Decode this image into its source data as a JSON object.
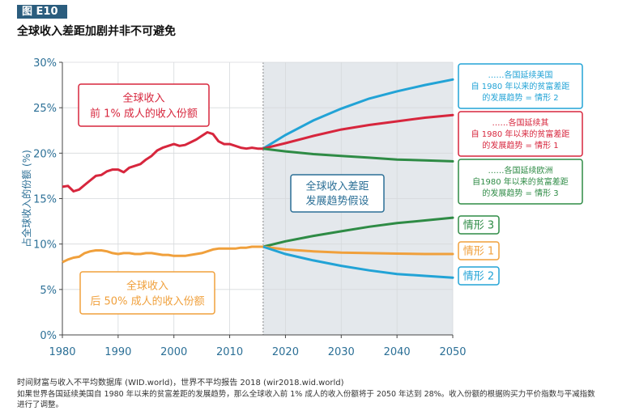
{
  "figure": {
    "label": "图 E10",
    "title": "全球收入差距加剧并非不可避免",
    "source": "时间财富与收入不平均数据库 (WID.world)，世界不平均报告 2018 (wir2018.wid.world)",
    "note": "如果世界各国延续美国自 1980 年以来的贫富差距的发展趋势，那么全球收入前 1% 成人的收入份额将于 2050 年达到 28%。收入份额的根据购买力平价指数与平减指数进行了调整。"
  },
  "colors": {
    "red": "#d7263d",
    "orange": "#f0a03c",
    "green": "#2e8b45",
    "blue": "#22a3d6",
    "axis": "#2b6f96",
    "shade": "#e4e8ec"
  },
  "chart_data": {
    "type": "line",
    "xlim": [
      1980,
      2050
    ],
    "ylim": [
      0,
      30
    ],
    "xticks": [
      1980,
      1990,
      2000,
      2010,
      2020,
      2030,
      2040,
      2050
    ],
    "yticks": [
      0,
      5,
      10,
      15,
      20,
      25,
      30
    ],
    "ytick_labels": [
      "0%",
      "5%",
      "10%",
      "15%",
      "20%",
      "25%",
      "30%"
    ],
    "ylabel": "占全球收入的份额 (%)",
    "grid": true,
    "projection_start": 2016,
    "projection_label": [
      "全球收入差距",
      "发展趋势假设"
    ],
    "historical": [
      {
        "name": "全球收入前 1% 成人的收入份额",
        "color": "red",
        "label_lines": [
          "全球收入",
          "前 1% 成人的收入份额"
        ],
        "x": [
          1980,
          1981,
          1982,
          1983,
          1984,
          1985,
          1986,
          1987,
          1988,
          1989,
          1990,
          1991,
          1992,
          1993,
          1994,
          1995,
          1996,
          1997,
          1998,
          1999,
          2000,
          2001,
          2002,
          2003,
          2004,
          2005,
          2006,
          2007,
          2008,
          2009,
          2010,
          2011,
          2012,
          2013,
          2014,
          2015,
          2016
        ],
        "y": [
          16.3,
          16.4,
          15.8,
          16.0,
          16.5,
          17.0,
          17.5,
          17.6,
          18.0,
          18.2,
          18.2,
          17.9,
          18.4,
          18.6,
          18.8,
          19.3,
          19.7,
          20.3,
          20.6,
          20.8,
          21.0,
          20.8,
          20.9,
          21.2,
          21.5,
          21.9,
          22.3,
          22.1,
          21.3,
          21.0,
          21.0,
          20.8,
          20.6,
          20.5,
          20.6,
          20.5,
          20.5
        ]
      },
      {
        "name": "全球收入后 50% 成人的收入份额",
        "color": "orange",
        "label_lines": [
          "全球收入",
          "后 50% 成人的收入份额"
        ],
        "x": [
          1980,
          1981,
          1982,
          1983,
          1984,
          1985,
          1986,
          1987,
          1988,
          1989,
          1990,
          1991,
          1992,
          1993,
          1994,
          1995,
          1996,
          1997,
          1998,
          1999,
          2000,
          2001,
          2002,
          2003,
          2004,
          2005,
          2006,
          2007,
          2008,
          2009,
          2010,
          2011,
          2012,
          2013,
          2014,
          2015,
          2016
        ],
        "y": [
          8.0,
          8.3,
          8.5,
          8.6,
          9.0,
          9.2,
          9.3,
          9.3,
          9.2,
          9.0,
          8.9,
          9.0,
          9.0,
          8.9,
          8.9,
          9.0,
          9.0,
          8.9,
          8.8,
          8.8,
          8.7,
          8.7,
          8.7,
          8.8,
          8.9,
          9.0,
          9.2,
          9.4,
          9.5,
          9.5,
          9.5,
          9.5,
          9.6,
          9.6,
          9.7,
          9.7,
          9.7
        ]
      }
    ],
    "scenarios": [
      {
        "name": "前1% 情形 2",
        "color": "blue",
        "x": [
          2016,
          2020,
          2025,
          2030,
          2035,
          2040,
          2045,
          2050
        ],
        "y": [
          20.5,
          22.0,
          23.6,
          24.9,
          26.0,
          26.8,
          27.5,
          28.1
        ],
        "callout": [
          "……各国延续美国",
          "自 1980 年以来的贫富差距",
          "的发展趋势 = 情形 2"
        ]
      },
      {
        "name": "前1% 情形 1",
        "color": "red",
        "x": [
          2016,
          2020,
          2025,
          2030,
          2035,
          2040,
          2045,
          2050
        ],
        "y": [
          20.5,
          21.1,
          21.9,
          22.6,
          23.1,
          23.5,
          23.9,
          24.2
        ],
        "callout": [
          "……各国延续其",
          "自 1980 年以来的贫富差距",
          "的发展趋势 = 情形 1"
        ]
      },
      {
        "name": "前1% 情形 3",
        "color": "green",
        "x": [
          2016,
          2020,
          2025,
          2030,
          2035,
          2040,
          2045,
          2050
        ],
        "y": [
          20.5,
          20.2,
          19.9,
          19.7,
          19.5,
          19.3,
          19.2,
          19.1
        ],
        "callout": [
          "……各国延续欧洲",
          "自1980 年以来的贫富差距",
          "的发展趋势 = 情形 3"
        ]
      },
      {
        "name": "后50% 情形 3",
        "color": "green",
        "x": [
          2016,
          2020,
          2025,
          2030,
          2035,
          2040,
          2045,
          2050
        ],
        "y": [
          9.7,
          10.3,
          10.9,
          11.4,
          11.9,
          12.3,
          12.6,
          12.9
        ],
        "tag": "情形 3"
      },
      {
        "name": "后50% 情形 1",
        "color": "orange",
        "x": [
          2016,
          2020,
          2025,
          2030,
          2035,
          2040,
          2045,
          2050
        ],
        "y": [
          9.7,
          9.4,
          9.2,
          9.05,
          9.0,
          8.95,
          8.9,
          8.9
        ],
        "tag": "情形 1"
      },
      {
        "name": "后50% 情形 2",
        "color": "blue",
        "x": [
          2016,
          2020,
          2025,
          2030,
          2035,
          2040,
          2045,
          2050
        ],
        "y": [
          9.7,
          8.9,
          8.2,
          7.6,
          7.1,
          6.7,
          6.5,
          6.3
        ],
        "tag": "情形 2"
      }
    ]
  }
}
